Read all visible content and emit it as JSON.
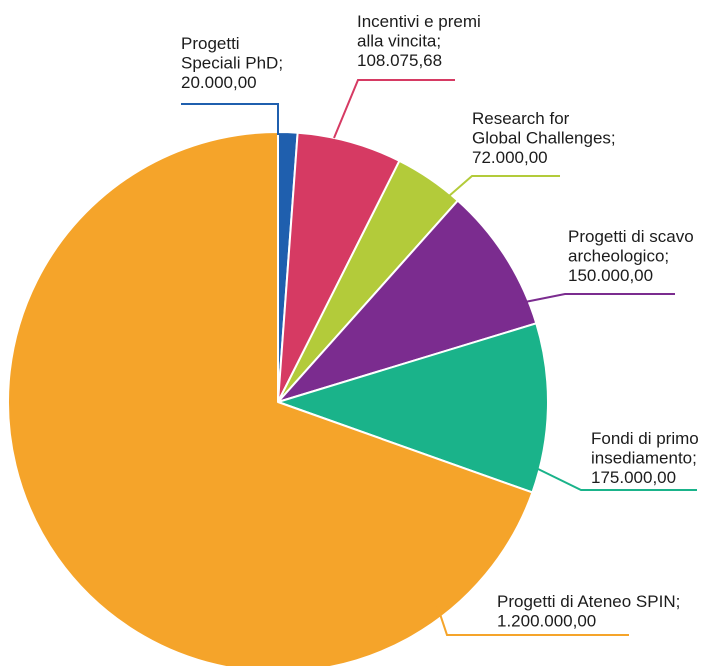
{
  "chart_data": {
    "type": "pie",
    "title": "",
    "slices": [
      {
        "label_lines": [
          "Progetti",
          "Speciali PhD;",
          "20.000,00"
        ],
        "value": 20000.0,
        "color": "#1f5fae"
      },
      {
        "label_lines": [
          "Incentivi e premi",
          "alla vincita;",
          "108.075,68"
        ],
        "value": 108075.68,
        "color": "#d63a63"
      },
      {
        "label_lines": [
          "Research for",
          "Global Challenges;",
          "72.000,00"
        ],
        "value": 72000.0,
        "color": "#b3cb3a"
      },
      {
        "label_lines": [
          "Progetti di scavo",
          "archeologico;",
          "150.000,00"
        ],
        "value": 150000.0,
        "color": "#7b2c8f"
      },
      {
        "label_lines": [
          "Fondi di primo",
          "insediamento;",
          "175.000,00"
        ],
        "value": 175000.0,
        "color": "#1ab38a"
      },
      {
        "label_lines": [
          "Progetti di Ateneo SPIN;",
          "1.200.000,00"
        ],
        "value": 1200000.0,
        "color": "#f5a42a"
      }
    ],
    "legend": "none",
    "start_angle": "top",
    "direction": "clockwise"
  }
}
